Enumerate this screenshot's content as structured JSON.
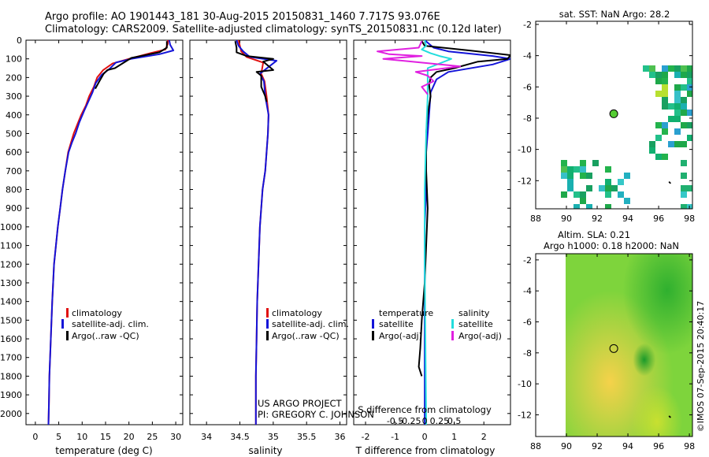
{
  "header": {
    "line1": "Argo profile: AO 1901443_181 30-Aug-2015 20150831_1460 7.717S 93.076E",
    "line2": "Climatology: CARS2009. Satellite-adjusted climatology: synTS_20150831.nc (0.12d later)"
  },
  "colors": {
    "climatology": "#e01010",
    "satellite": "#1414d8",
    "argo": "#000000",
    "salinity_sat": "#22dddd",
    "salinity_argo": "#e020e0"
  },
  "depth_axis": {
    "ylim": [
      0,
      2060
    ],
    "ticks": [
      0,
      100,
      200,
      300,
      400,
      500,
      600,
      700,
      800,
      900,
      1000,
      1100,
      1200,
      1300,
      1400,
      1500,
      1600,
      1700,
      1800,
      1900,
      2000
    ]
  },
  "chart_data": [
    {
      "type": "line",
      "id": "temperature",
      "xlabel": "temperature (deg C)",
      "xlim": [
        -2,
        31.5
      ],
      "xticks": [
        0,
        5,
        10,
        15,
        20,
        25,
        30
      ],
      "tick_labels": [
        "0",
        "5",
        "10",
        "15",
        "20",
        "25",
        "30"
      ],
      "legend": [
        "climatology",
        "satellite-adj. clim.",
        "Argo(..raw -QC)"
      ],
      "series": [
        {
          "name": "climatology",
          "color": "#e01010",
          "x": [
            28.3,
            28.3,
            27.8,
            24.5,
            20,
            16.5,
            14.5,
            13.2,
            12.5,
            11.5,
            10.8,
            9.8,
            9,
            8.2,
            7.6,
            7,
            6.4,
            5.8,
            5.3,
            4.8,
            4.4,
            4,
            3.6,
            3.3,
            3,
            2.9,
            2.8
          ],
          "depth": [
            0,
            20,
            50,
            70,
            100,
            125,
            160,
            200,
            250,
            300,
            350,
            400,
            450,
            500,
            550,
            600,
            700,
            800,
            900,
            1000,
            1100,
            1200,
            1400,
            1600,
            1800,
            1950,
            2060
          ]
        },
        {
          "name": "satellite-adj. clim.",
          "color": "#1414d8",
          "x": [
            28.6,
            28.8,
            29.5,
            26.5,
            20.5,
            17.2,
            15.8,
            14.2,
            12.9,
            12.2,
            11.3,
            10.4,
            9.4,
            8.6,
            7.8,
            7.1,
            6.4,
            5.8,
            5.3,
            4.8,
            4.4,
            4,
            3.6,
            3.3,
            3,
            2.9,
            2.8
          ],
          "depth": [
            0,
            25,
            55,
            75,
            100,
            120,
            155,
            185,
            230,
            280,
            330,
            380,
            440,
            500,
            550,
            600,
            700,
            800,
            900,
            1000,
            1100,
            1200,
            1400,
            1600,
            1800,
            1950,
            2060
          ]
        },
        {
          "name": "Argo(..raw -QC)",
          "color": "#000000",
          "x": [
            28.1,
            28.1,
            26.5,
            20.5,
            17,
            15.4,
            14.6,
            13.9,
            12.8
          ],
          "depth": [
            5,
            40,
            65,
            95,
            150,
            160,
            180,
            210,
            260
          ]
        }
      ]
    },
    {
      "type": "line",
      "id": "salinity",
      "xlabel": "salinity",
      "xlim": [
        33.75,
        36.1
      ],
      "xticks": [
        34,
        34.5,
        35,
        35.5,
        36
      ],
      "tick_labels": [
        "34",
        "34.5",
        "35",
        "35.5",
        "36"
      ],
      "legend": [
        "climatology",
        "satellite-adj. clim.",
        "Argo(..raw -QC)"
      ],
      "annotation": [
        "US ARGO PROJECT",
        "PI: GREGORY C. JOHNSON"
      ],
      "series": [
        {
          "name": "climatology",
          "color": "#e01010",
          "x": [
            34.48,
            34.5,
            34.52,
            34.6,
            34.85,
            34.82,
            34.87,
            34.9,
            34.93,
            34.92,
            34.9,
            34.88,
            34.84,
            34.82,
            34.8,
            34.78,
            34.76,
            34.75,
            34.74,
            34.74
          ],
          "depth": [
            0,
            30,
            60,
            90,
            120,
            180,
            220,
            300,
            400,
            500,
            600,
            700,
            800,
            900,
            1000,
            1200,
            1400,
            1600,
            1800,
            2060
          ]
        },
        {
          "name": "satellite-adj. clim.",
          "color": "#1414d8",
          "x": [
            34.45,
            34.48,
            34.55,
            34.65,
            35.05,
            34.8,
            34.86,
            34.88,
            34.93,
            34.92,
            34.9,
            34.88,
            34.84,
            34.82,
            34.8,
            34.78,
            34.76,
            34.75,
            34.74,
            34.74
          ],
          "depth": [
            0,
            30,
            60,
            90,
            110,
            180,
            220,
            300,
            400,
            500,
            600,
            700,
            800,
            900,
            1000,
            1200,
            1400,
            1600,
            1800,
            2060
          ]
        },
        {
          "name": "Argo(..raw -QC)",
          "color": "#000000",
          "x": [
            34.43,
            34.45,
            34.45,
            34.6,
            35.0,
            34.85,
            35.0,
            34.75,
            34.82,
            34.82,
            34.88,
            34.9
          ],
          "depth": [
            5,
            40,
            65,
            85,
            100,
            115,
            160,
            170,
            190,
            250,
            300,
            330
          ]
        }
      ]
    },
    {
      "type": "line",
      "id": "difference",
      "xlabel": "T difference from climatology",
      "xlabel2": "S difference from climatology",
      "xlim": [
        -2.4,
        2.9
      ],
      "xticks": [
        -2,
        -1,
        0,
        1,
        2
      ],
      "tick_labels": [
        "-2",
        "-1",
        "0",
        "1",
        "2"
      ],
      "s_ticks_pos": [
        -1,
        -0.5,
        0,
        0.5,
        1
      ],
      "s_tick_labels": [
        "-0.5",
        "-0.25",
        "0",
        "0.25",
        "0.5"
      ],
      "legend_temperature": [
        "temperature",
        "satellite",
        "Argo(-adj)"
      ],
      "legend_salinity": [
        "salinity",
        "satellite",
        "Argo(-adj)"
      ],
      "series": [
        {
          "name": "temperature satellite",
          "color": "#1414d8",
          "x": [
            0,
            0.3,
            0.8,
            2.3,
            2.9,
            2.3,
            0.8,
            0.4,
            0.2,
            0.15,
            0.1,
            0.05,
            0.05,
            0,
            0
          ],
          "depth": [
            0,
            40,
            60,
            85,
            100,
            130,
            170,
            210,
            280,
            400,
            500,
            600,
            800,
            1000,
            2060
          ]
        },
        {
          "name": "temperature Argo(-adj)",
          "color": "#000000",
          "x": [
            -0.1,
            0,
            1.5,
            2.9,
            2.8,
            1.8,
            1,
            0.4,
            0.2,
            0.15,
            0.2,
            0.1,
            0.05,
            0.05,
            0.1,
            0.05,
            0,
            -0.1,
            -0.15,
            -0.2,
            -0.1
          ],
          "depth": [
            5,
            30,
            55,
            80,
            100,
            115,
            150,
            170,
            200,
            240,
            300,
            400,
            500,
            700,
            900,
            1100,
            1300,
            1500,
            1650,
            1750,
            1800
          ]
        },
        {
          "name": "salinity satellite",
          "color": "#22dddd",
          "x": [
            0,
            0.05,
            -0.1,
            0.2,
            0.5,
            0.9,
            0.1,
            0.1,
            0.1,
            0.05,
            0,
            0,
            0.05
          ],
          "depth": [
            0,
            30,
            50,
            70,
            85,
            100,
            150,
            200,
            300,
            500,
            800,
            1200,
            2060
          ]
        },
        {
          "name": "salinity Argo(-adj)",
          "color": "#e020e0",
          "x": [
            -0.1,
            -0.2,
            -1.6,
            -1.2,
            -0.1,
            -1.4,
            1.2,
            -0.3,
            0.1,
            0.3,
            -0.1,
            0.1
          ],
          "depth": [
            5,
            40,
            60,
            75,
            85,
            100,
            140,
            170,
            190,
            220,
            250,
            290
          ]
        }
      ]
    },
    {
      "type": "heatmap",
      "id": "sst_map",
      "title": "sat. SST: NaN Argo: 28.2",
      "xlim": [
        88,
        98.2
      ],
      "ylim": [
        -13.8,
        -1.8
      ],
      "xticks": [
        88,
        90,
        92,
        94,
        96,
        98
      ],
      "yticks": [
        -2,
        -4,
        -6,
        -8,
        -10,
        -12
      ],
      "argo_marker": {
        "lon": 93.08,
        "lat": -7.72,
        "color": "#55cc33"
      },
      "tracks": [
        [
          96.7,
          -12.1
        ],
        [
          96.75,
          -12.15
        ]
      ]
    },
    {
      "type": "heatmap",
      "id": "sla_map",
      "title": "Altim. SLA: 0.21",
      "subtitle": "Argo h1000: 0.18 h2000: NaN",
      "xlim": [
        88,
        98.2
      ],
      "ylim": [
        -13.4,
        -1.6
      ],
      "xticks": [
        88,
        90,
        92,
        94,
        96,
        98
      ],
      "yticks": [
        -2,
        -4,
        -6,
        -8,
        -10,
        -12
      ],
      "argo_marker": {
        "lon": 93.08,
        "lat": -7.72
      },
      "tracks": [
        [
          96.7,
          -12.1
        ],
        [
          96.75,
          -12.15
        ]
      ],
      "credit": "©IMOS 07-Sep-2015 20:40:17"
    }
  ]
}
